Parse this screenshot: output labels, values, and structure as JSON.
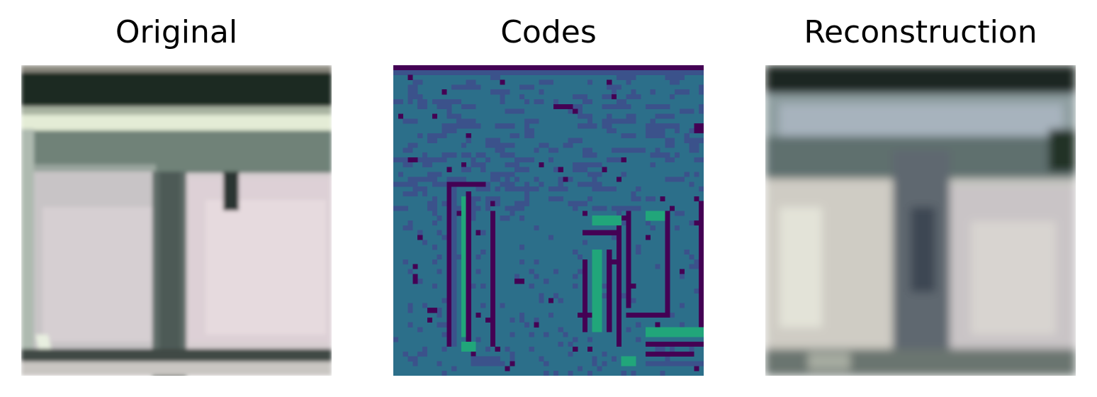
{
  "panels": [
    {
      "title": "Original"
    },
    {
      "title": "Codes"
    },
    {
      "title": "Reconstruction"
    }
  ],
  "colors": {
    "codes_teal": "#2c6f8a",
    "codes_purple_dark": "#440154",
    "codes_indigo": "#3b528b",
    "codes_green": "#21a67a"
  }
}
